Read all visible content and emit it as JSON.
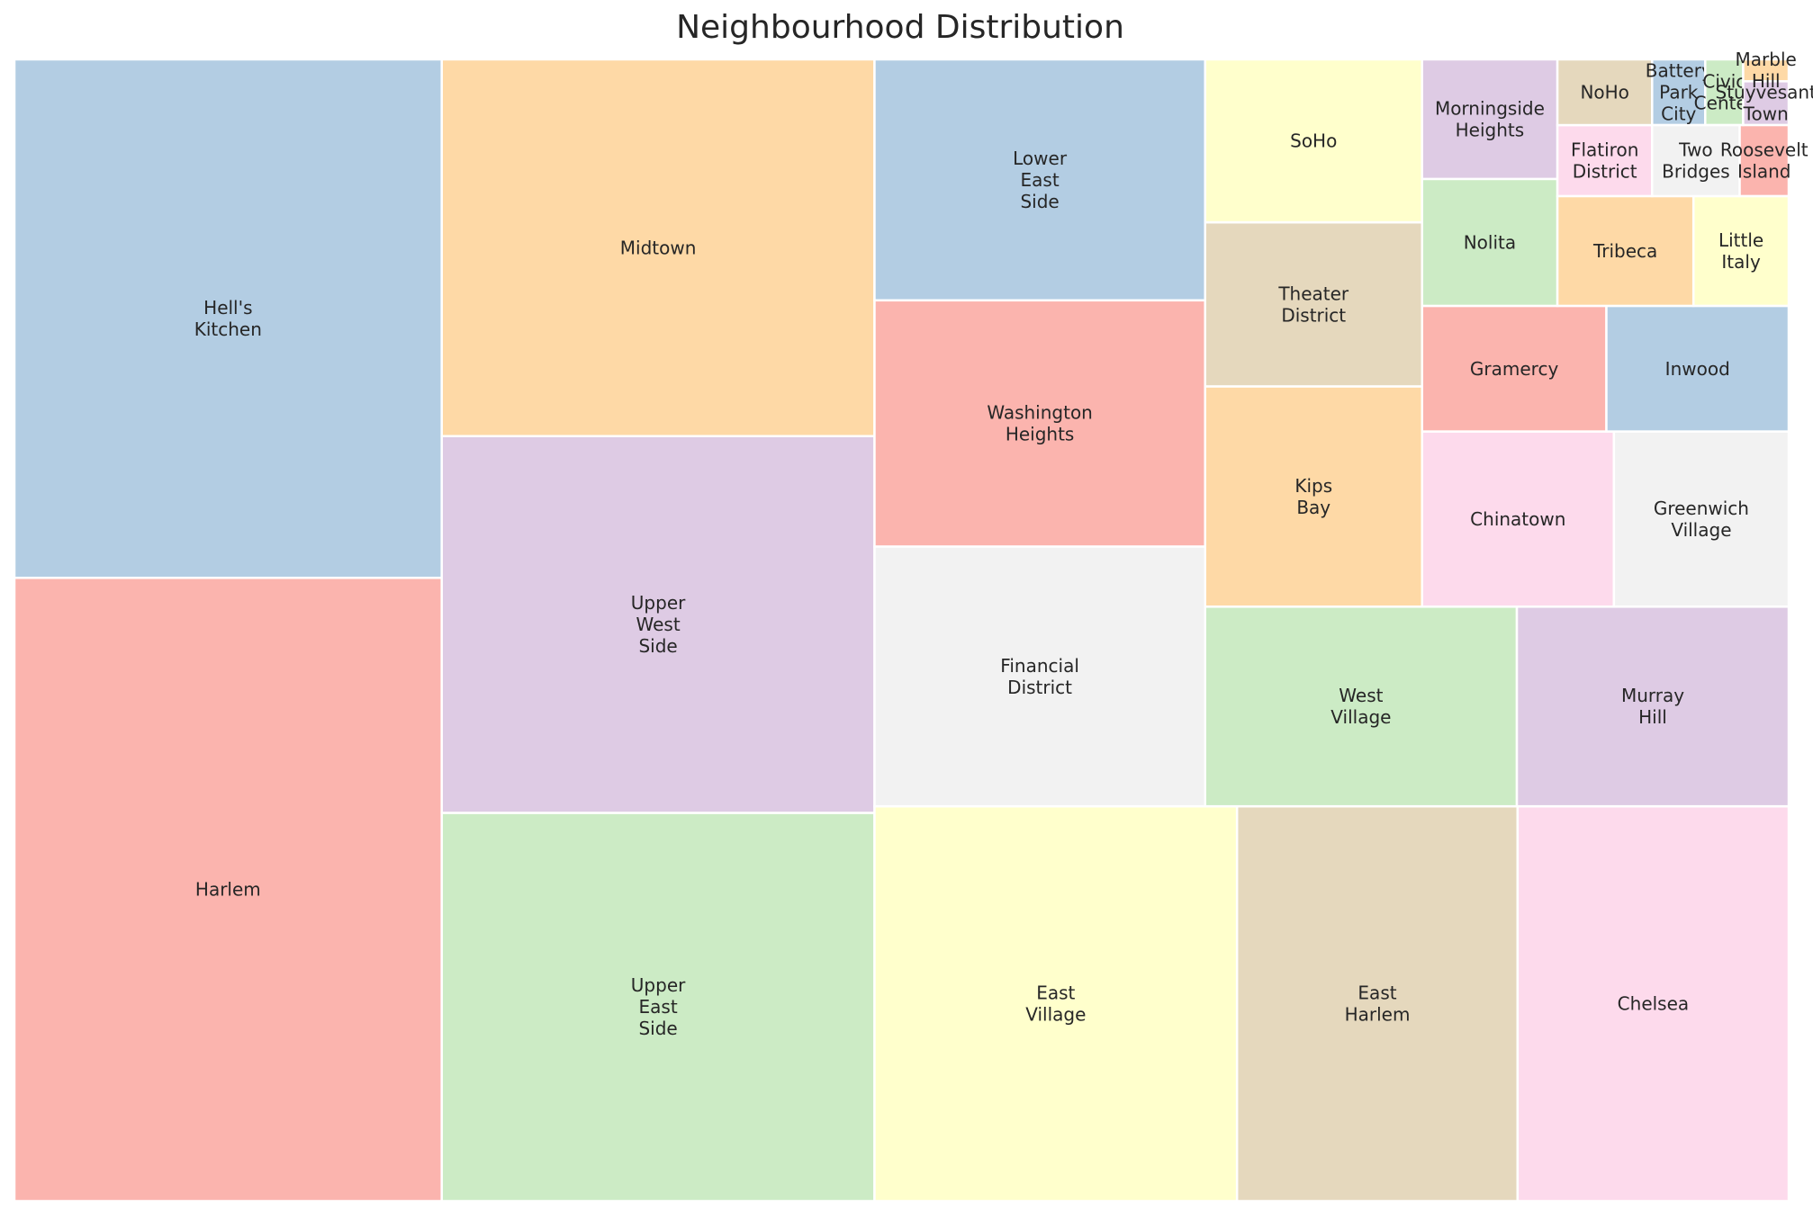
{
  "chart_data": {
    "type": "treemap",
    "title": "Neighbourhood Distribution",
    "palette": [
      "#fbb4ae",
      "#b3cde3",
      "#ccebc5",
      "#decbe4",
      "#fed9a6",
      "#ffffcc",
      "#e5d8bd",
      "#fddaec",
      "#f2f2f2"
    ],
    "items": [
      {
        "name": "Harlem",
        "value": 1070,
        "color": "#fbb4ae"
      },
      {
        "name": "Hell's Kitchen",
        "value": 890,
        "color": "#b3cde3"
      },
      {
        "name": "Upper East Side",
        "value": 675,
        "color": "#ccebc5"
      },
      {
        "name": "Upper West Side",
        "value": 655,
        "color": "#decbe4"
      },
      {
        "name": "Midtown",
        "value": 655,
        "color": "#fed9a6"
      },
      {
        "name": "East Village",
        "value": 575,
        "color": "#ffffcc"
      },
      {
        "name": "East Harlem",
        "value": 445,
        "color": "#e5d8bd"
      },
      {
        "name": "Chelsea",
        "value": 430,
        "color": "#fddaec"
      },
      {
        "name": "Financial District",
        "value": 345,
        "color": "#f2f2f2"
      },
      {
        "name": "Washington Heights",
        "value": 327,
        "color": "#fbb4ae"
      },
      {
        "name": "Lower East Side",
        "value": 320,
        "color": "#b3cde3"
      },
      {
        "name": "West Village",
        "value": 250,
        "color": "#ccebc5"
      },
      {
        "name": "Murray Hill",
        "value": 218,
        "color": "#decbe4"
      },
      {
        "name": "Kips Bay",
        "value": 192,
        "color": "#fed9a6"
      },
      {
        "name": "SoHo",
        "value": 142,
        "color": "#ffffcc"
      },
      {
        "name": "Theater District",
        "value": 143,
        "color": "#e5d8bd"
      },
      {
        "name": "Chinatown",
        "value": 135,
        "color": "#fddaec"
      },
      {
        "name": "Greenwich Village",
        "value": 123,
        "color": "#f2f2f2"
      },
      {
        "name": "Gramercy",
        "value": 93,
        "color": "#fbb4ae"
      },
      {
        "name": "Inwood",
        "value": 92,
        "color": "#b3cde3"
      },
      {
        "name": "Nolita",
        "value": 69,
        "color": "#ccebc5"
      },
      {
        "name": "Morningside Heights",
        "value": 65,
        "color": "#decbe4"
      },
      {
        "name": "Tribeca",
        "value": 60,
        "color": "#fed9a6"
      },
      {
        "name": "Little Italy",
        "value": 42,
        "color": "#ffffcc"
      },
      {
        "name": "NoHo",
        "value": 25,
        "color": "#e5d8bd"
      },
      {
        "name": "Flatiron District",
        "value": 27,
        "color": "#fddaec"
      },
      {
        "name": "Two Bridges",
        "value": 25,
        "color": "#f2f2f2"
      },
      {
        "name": "Roosevelt Island",
        "value": 14,
        "color": "#fbb4ae"
      },
      {
        "name": "Battery Park City",
        "value": 14,
        "color": "#b3cde3"
      },
      {
        "name": "Civic Center",
        "value": 10,
        "color": "#ccebc5"
      },
      {
        "name": "Stuyvesant Town",
        "value": 8,
        "color": "#decbe4"
      },
      {
        "name": "Marble Hill",
        "value": 4,
        "color": "#fed9a6"
      }
    ]
  }
}
